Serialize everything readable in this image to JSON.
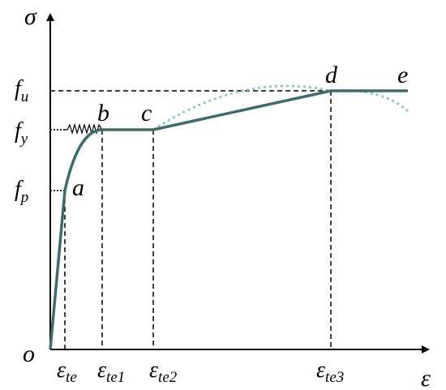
{
  "colors": {
    "curve": "#3e6b6b",
    "dotted_curve": "#8cc8cc",
    "axis": "#000000"
  },
  "axes": {
    "y_symbol": "σ",
    "x_symbol": "ε",
    "origin": "o"
  },
  "stress_levels": {
    "fu": {
      "base": "f",
      "sub": "u"
    },
    "fy": {
      "base": "f",
      "sub": "y"
    },
    "fp": {
      "base": "f",
      "sub": "p"
    }
  },
  "strain_levels": {
    "te": {
      "base": "ε",
      "sub": "te"
    },
    "te1": {
      "base": "ε",
      "sub": "te1"
    },
    "te2": {
      "base": "ε",
      "sub": "te2"
    },
    "te3": {
      "base": "ε",
      "sub": "te3"
    }
  },
  "points": {
    "a": "a",
    "b": "b",
    "c": "c",
    "d": "d",
    "e": "e"
  }
}
